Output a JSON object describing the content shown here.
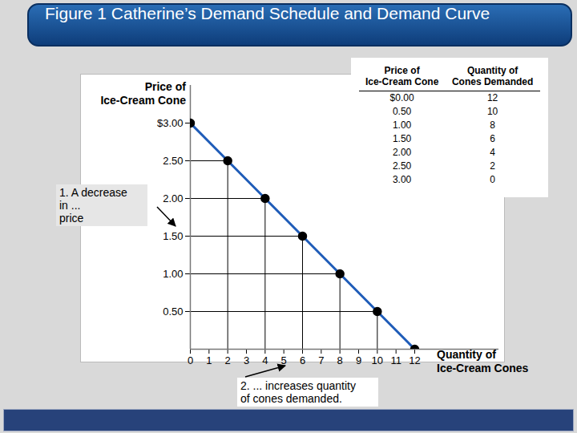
{
  "chart_data": {
    "type": "line",
    "title": "Figure 1 Catherine’s Demand Schedule and Demand Curve",
    "x_label": "Quantity of\nIce-Cream Cones",
    "y_label": "Price of\nIce-Cream Cone",
    "x": [
      0,
      2,
      4,
      6,
      8,
      10,
      12
    ],
    "values": [
      3,
      2.5,
      2,
      1.5,
      1,
      0.5,
      0
    ],
    "color": "#1f5cb8",
    "marker": "circle",
    "line_style": "solid",
    "xlim": [
      0,
      16.5
    ],
    "ylim": [
      0,
      3.5
    ],
    "xticks": [
      0,
      1,
      2,
      3,
      4,
      5,
      6,
      7,
      8,
      9,
      10,
      11,
      12
    ],
    "yticks": [
      {
        "value": 0.5,
        "label": "0.50"
      },
      {
        "value": 1,
        "label": "1.00"
      },
      {
        "value": 1.5,
        "label": "1.50"
      },
      {
        "value": 2,
        "label": "2.00"
      },
      {
        "value": 2.5,
        "label": "2.50"
      },
      {
        "value": 3,
        "label": "$3.00"
      }
    ],
    "annotations": [
      "1. A decrease\nin ...\nprice",
      "2. ... increases quantity\nof cones demanded."
    ],
    "table": {
      "columns": [
        "Price of\nIce-Cream Cone",
        "Quantity of\nCones Demanded"
      ],
      "rows": [
        [
          "$0.00",
          "12"
        ],
        [
          "0.50",
          "10"
        ],
        [
          "1.00",
          "8"
        ],
        [
          "1.50",
          "6"
        ],
        [
          "2.00",
          "4"
        ],
        [
          "2.50",
          "2"
        ],
        [
          "3.00",
          "0"
        ]
      ]
    }
  }
}
